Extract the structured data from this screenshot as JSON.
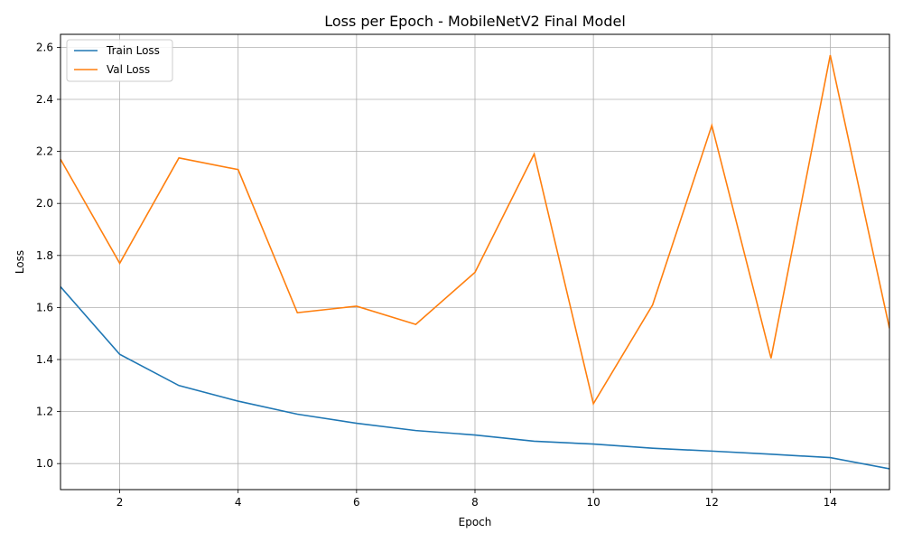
{
  "chart_data": {
    "type": "line",
    "title": "Loss per Epoch - MobileNetV2 Final Model",
    "xlabel": "Epoch",
    "ylabel": "Loss",
    "xlim": [
      1,
      15
    ],
    "ylim": [
      0.9,
      2.65
    ],
    "xticks": [
      2,
      4,
      6,
      8,
      10,
      12,
      14
    ],
    "yticks": [
      1.0,
      1.2,
      1.4,
      1.6,
      1.8,
      2.0,
      2.2,
      2.4,
      2.6
    ],
    "grid": true,
    "legend_position": "top-left",
    "x": [
      1,
      2,
      3,
      4,
      5,
      6,
      7,
      8,
      9,
      10,
      11,
      12,
      13,
      14,
      15
    ],
    "series": [
      {
        "name": "Train Loss",
        "color": "#1f77b4",
        "values": [
          1.68,
          1.42,
          1.3,
          1.24,
          1.19,
          1.155,
          1.127,
          1.11,
          1.086,
          1.075,
          1.059,
          1.048,
          1.036,
          1.023,
          0.98
        ]
      },
      {
        "name": "Val Loss",
        "color": "#ff7f0e",
        "values": [
          2.17,
          1.77,
          2.175,
          2.13,
          1.58,
          1.605,
          1.535,
          1.735,
          2.19,
          1.23,
          1.61,
          2.3,
          1.405,
          2.57,
          1.52
        ]
      }
    ]
  }
}
